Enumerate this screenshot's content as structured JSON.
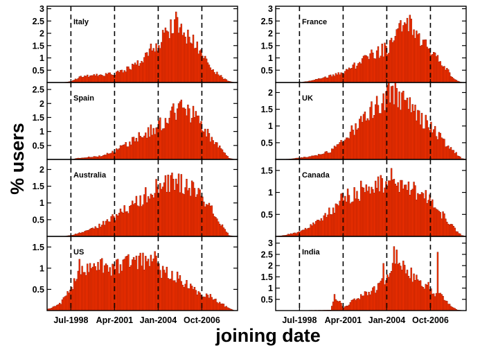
{
  "figure": {
    "xlabel": "joining date",
    "ylabel": "% users"
  },
  "chart_data": {
    "type": "bar",
    "xlabel": "joining date",
    "ylabel": "% users",
    "x_start": "1997-01",
    "x_end": "2008-12",
    "x_ticks": [
      "Jul-1998",
      "Apr-2001",
      "Jan-2004",
      "Oct-2006"
    ],
    "x_tick_months": [
      "1998-07",
      "2001-04",
      "2004-01",
      "2006-10"
    ],
    "dashed_lines_at": [
      "1998-07",
      "2001-04",
      "2004-01",
      "2006-10"
    ],
    "bar_color": "#ff3300",
    "bar_edge_color": "#8a1500",
    "series": [
      {
        "name": "Italy",
        "ylim": [
          0,
          3.1
        ],
        "yticks": [
          0.5,
          1,
          1.5,
          2,
          2.5,
          3
        ],
        "profile": [
          [
            "1998-07",
            0.05
          ],
          [
            "1999-03",
            0.25
          ],
          [
            "2000-06",
            0.3
          ],
          [
            "2001-04",
            0.35
          ],
          [
            "2002-03",
            0.6
          ],
          [
            "2003-01",
            0.9
          ],
          [
            "2003-10",
            1.5
          ],
          [
            "2004-06",
            1.9
          ],
          [
            "2005-01",
            2.6
          ],
          [
            "2005-06",
            2.2
          ],
          [
            "2006-01",
            1.8
          ],
          [
            "2006-10",
            1.1
          ],
          [
            "2007-04",
            0.6
          ],
          [
            "2008-01",
            0.2
          ],
          [
            "2008-06",
            0.05
          ]
        ]
      },
      {
        "name": "France",
        "ylim": [
          0,
          3.1
        ],
        "yticks": [
          0.5,
          1,
          1.5,
          2,
          2.5,
          3
        ],
        "profile": [
          [
            "1999-01",
            0.05
          ],
          [
            "2000-01",
            0.2
          ],
          [
            "2001-04",
            0.4
          ],
          [
            "2002-01",
            0.7
          ],
          [
            "2003-01",
            1.1
          ],
          [
            "2004-01",
            1.4
          ],
          [
            "2004-10",
            2.1
          ],
          [
            "2005-06",
            2.4
          ],
          [
            "2006-03",
            1.6
          ],
          [
            "2006-10",
            1.3
          ],
          [
            "2007-04",
            0.9
          ],
          [
            "2008-01",
            0.3
          ],
          [
            "2008-06",
            0.05
          ]
        ]
      },
      {
        "name": "Spain",
        "ylim": [
          0,
          2.75
        ],
        "yticks": [
          0.5,
          1,
          1.5,
          2,
          2.5
        ],
        "profile": [
          [
            "1999-01",
            0.05
          ],
          [
            "2000-06",
            0.12
          ],
          [
            "2001-04",
            0.3
          ],
          [
            "2002-03",
            0.6
          ],
          [
            "2003-01",
            0.9
          ],
          [
            "2004-01",
            1.2
          ],
          [
            "2004-10",
            1.6
          ],
          [
            "2005-06",
            1.9
          ],
          [
            "2006-03",
            1.6
          ],
          [
            "2006-10",
            1.2
          ],
          [
            "2007-04",
            0.8
          ],
          [
            "2008-01",
            0.3
          ],
          [
            "2008-06",
            0.05
          ]
        ]
      },
      {
        "name": "UK",
        "ylim": [
          0,
          2.3
        ],
        "yticks": [
          0.5,
          1,
          1.5,
          2
        ],
        "profile": [
          [
            "1998-01",
            0.02
          ],
          [
            "1999-06",
            0.1
          ],
          [
            "2000-06",
            0.25
          ],
          [
            "2001-04",
            0.6
          ],
          [
            "2002-03",
            1.05
          ],
          [
            "2003-01",
            1.45
          ],
          [
            "2003-10",
            1.8
          ],
          [
            "2004-04",
            2.05
          ],
          [
            "2005-01",
            1.75
          ],
          [
            "2005-10",
            1.35
          ],
          [
            "2006-10",
            1.0
          ],
          [
            "2007-06",
            0.6
          ],
          [
            "2008-03",
            0.25
          ],
          [
            "2008-09",
            0.03
          ]
        ]
      },
      {
        "name": "Australia",
        "ylim": [
          0,
          2.3
        ],
        "yticks": [
          0.5,
          1,
          1.5,
          2
        ],
        "profile": [
          [
            "1998-07",
            0.03
          ],
          [
            "1999-06",
            0.15
          ],
          [
            "2000-06",
            0.35
          ],
          [
            "2001-04",
            0.6
          ],
          [
            "2002-06",
            0.95
          ],
          [
            "2003-06",
            1.3
          ],
          [
            "2004-01",
            1.65
          ],
          [
            "2004-10",
            1.7
          ],
          [
            "2005-06",
            1.55
          ],
          [
            "2006-03",
            1.35
          ],
          [
            "2006-10",
            1.15
          ],
          [
            "2007-06",
            0.7
          ],
          [
            "2008-03",
            0.2
          ],
          [
            "2008-06",
            0.03
          ]
        ]
      },
      {
        "name": "Canada",
        "ylim": [
          0,
          1.75
        ],
        "yticks": [
          0.5,
          1,
          1.5
        ],
        "profile": [
          [
            "1997-06",
            0.02
          ],
          [
            "1998-07",
            0.1
          ],
          [
            "1999-06",
            0.3
          ],
          [
            "2000-06",
            0.6
          ],
          [
            "2001-04",
            0.85
          ],
          [
            "2002-06",
            1.05
          ],
          [
            "2003-06",
            1.2
          ],
          [
            "2004-01",
            1.3
          ],
          [
            "2004-10",
            1.25
          ],
          [
            "2005-06",
            1.1
          ],
          [
            "2006-03",
            0.95
          ],
          [
            "2006-10",
            0.8
          ],
          [
            "2007-06",
            0.5
          ],
          [
            "2008-03",
            0.2
          ],
          [
            "2008-09",
            0.02
          ]
        ]
      },
      {
        "name": "US",
        "ylim": [
          0,
          1.75
        ],
        "yticks": [
          0.5,
          1,
          1.5
        ],
        "profile": [
          [
            "1997-01",
            0.03
          ],
          [
            "1997-10",
            0.15
          ],
          [
            "1998-07",
            0.5
          ],
          [
            "1999-01",
            1.0
          ],
          [
            "2000-01",
            1.05
          ],
          [
            "2001-04",
            1.0
          ],
          [
            "2002-06",
            1.15
          ],
          [
            "2003-06",
            1.2
          ],
          [
            "2004-01",
            1.15
          ],
          [
            "2004-03",
            0.9
          ],
          [
            "2005-01",
            0.8
          ],
          [
            "2005-10",
            0.6
          ],
          [
            "2006-10",
            0.38
          ],
          [
            "2007-06",
            0.3
          ],
          [
            "2008-01",
            0.15
          ],
          [
            "2008-06",
            0.05
          ]
        ]
      },
      {
        "name": "India",
        "ylim": [
          0,
          3.3
        ],
        "yticks": [
          0.5,
          1,
          1.5,
          2,
          2.5,
          3
        ],
        "profile": [
          [
            "1998-01",
            0.0
          ],
          [
            "2000-06",
            0.02
          ],
          [
            "2000-09",
            0.6
          ],
          [
            "2001-02",
            0.3
          ],
          [
            "2001-04",
            0.1
          ],
          [
            "2001-10",
            0.4
          ],
          [
            "2002-10",
            0.8
          ],
          [
            "2003-06",
            1.0
          ],
          [
            "2004-01",
            1.6
          ],
          [
            "2004-06",
            2.5
          ],
          [
            "2005-01",
            2.0
          ],
          [
            "2005-10",
            1.4
          ],
          [
            "2006-06",
            1.2
          ],
          [
            "2006-10",
            0.9
          ],
          [
            "2007-06",
            0.6
          ],
          [
            "2008-01",
            0.2
          ],
          [
            "2008-06",
            0.03
          ]
        ],
        "spikes": [
          [
            "2004-06",
            2.85
          ],
          [
            "2004-08",
            2.7
          ],
          [
            "2007-03",
            2.6
          ],
          [
            "2003-10",
            2.1
          ]
        ]
      }
    ]
  }
}
